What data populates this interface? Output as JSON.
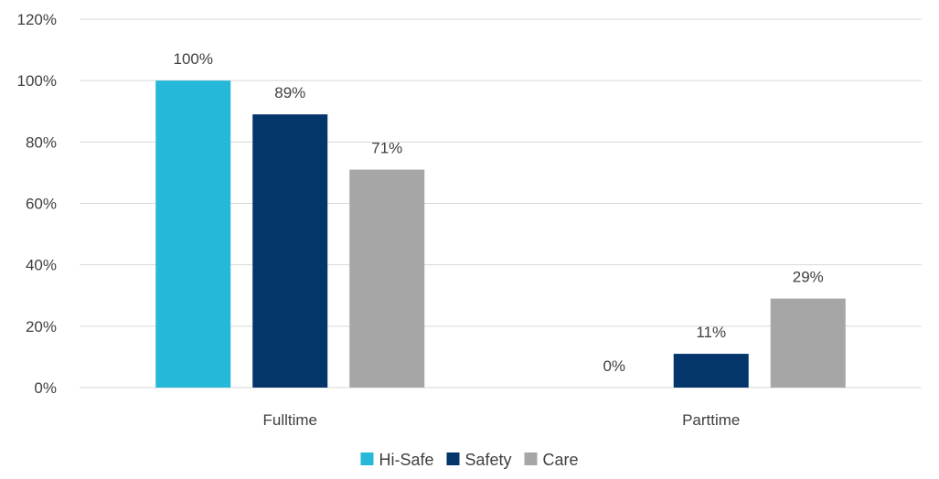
{
  "chart_data": {
    "type": "bar",
    "categories": [
      "Fulltime",
      "Parttime"
    ],
    "series": [
      {
        "name": "Hi-Safe",
        "values": [
          100,
          0
        ],
        "color": "#25b8d9"
      },
      {
        "name": "Safety",
        "values": [
          89,
          11
        ],
        "color": "#04356b"
      },
      {
        "name": "Care",
        "values": [
          71,
          29
        ],
        "color": "#a6a6a6"
      }
    ],
    "data_labels": [
      [
        "100%",
        "0%"
      ],
      [
        "89%",
        "11%"
      ],
      [
        "71%",
        "29%"
      ]
    ],
    "y_ticks": [
      0,
      20,
      40,
      60,
      80,
      100,
      120
    ],
    "y_tick_labels": [
      "0%",
      "20%",
      "40%",
      "60%",
      "80%",
      "100%",
      "120%"
    ],
    "ylim": [
      0,
      120
    ],
    "grid": true,
    "legend_position": "bottom",
    "title": "",
    "xlabel": "",
    "ylabel": ""
  }
}
